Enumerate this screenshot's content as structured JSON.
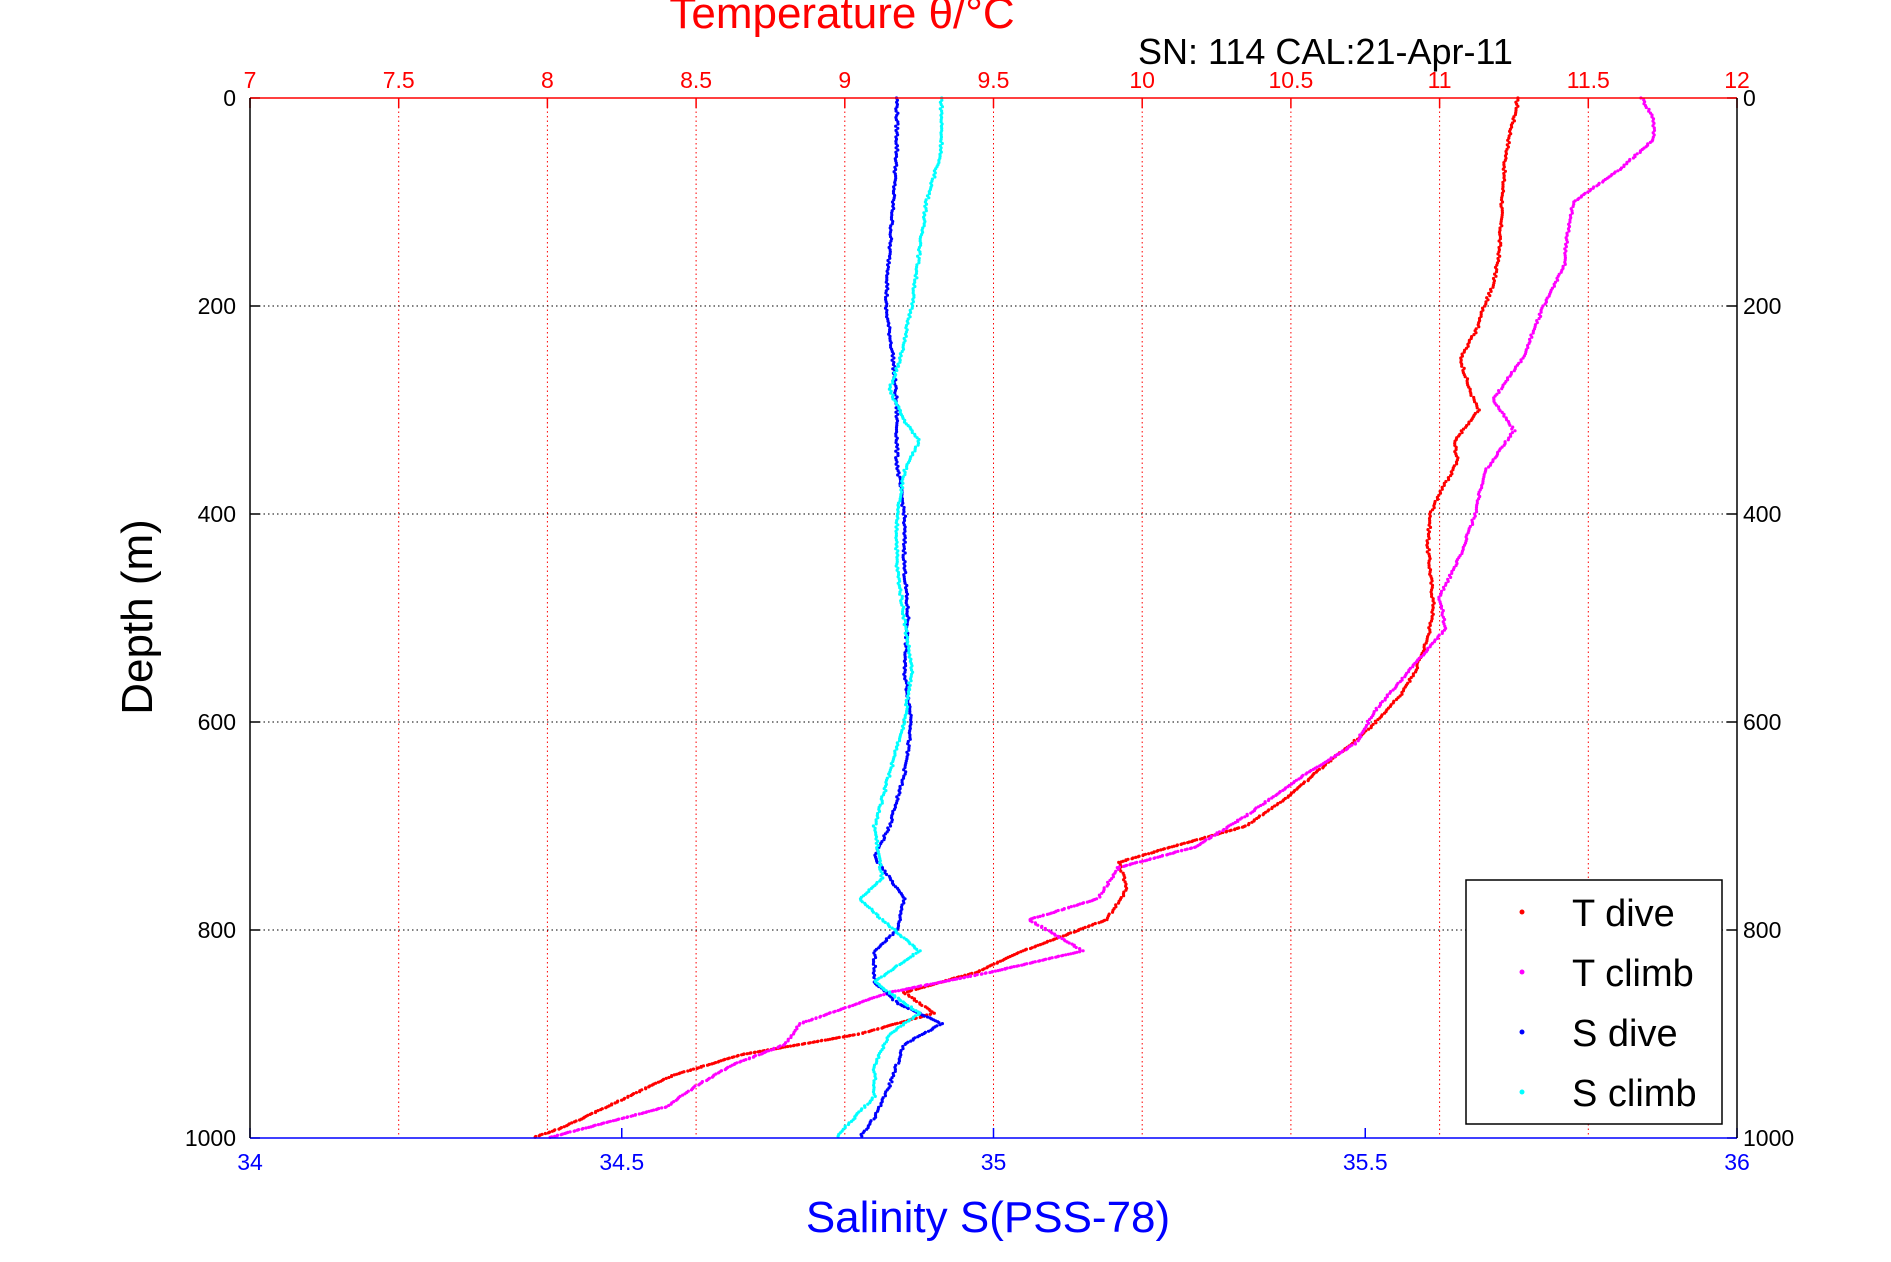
{
  "chart_data": {
    "type": "scatter",
    "title": "Temperature θ/°C",
    "subtitle": "SN: 114  CAL:21-Apr-11",
    "xlabel_top": "Temperature θ/°C",
    "xlabel_bottom": "Salinity S(PSS-78)",
    "ylabel": "Depth (m)",
    "temperature_axis": {
      "range": [
        7,
        12
      ],
      "ticks": [
        "7",
        "7.5",
        "8",
        "8.5",
        "9",
        "9.5",
        "10",
        "10.5",
        "11",
        "11.5",
        "12"
      ],
      "color": "#ff0000"
    },
    "salinity_axis": {
      "range": [
        34,
        36
      ],
      "ticks": [
        "34",
        "34.5",
        "35",
        "35.5",
        "36"
      ],
      "color": "#0000ff"
    },
    "depth_axis": {
      "range": [
        0,
        1000
      ],
      "ticks": [
        "0",
        "200",
        "400",
        "600",
        "800",
        "1000"
      ],
      "reversed": true
    },
    "grid": true,
    "legend_placement": "bottom-right",
    "series": [
      {
        "name": "T dive",
        "axis": "temperature",
        "color": "#ff0000",
        "points": [
          [
            11.26,
            0
          ],
          [
            11.26,
            10
          ],
          [
            11.24,
            30
          ],
          [
            11.22,
            60
          ],
          [
            11.21,
            100
          ],
          [
            11.2,
            150
          ],
          [
            11.18,
            180
          ],
          [
            11.15,
            200
          ],
          [
            11.13,
            220
          ],
          [
            11.07,
            250
          ],
          [
            11.1,
            280
          ],
          [
            11.13,
            300
          ],
          [
            11.05,
            330
          ],
          [
            11.06,
            350
          ],
          [
            11.0,
            380
          ],
          [
            10.97,
            400
          ],
          [
            10.96,
            430
          ],
          [
            10.97,
            460
          ],
          [
            10.98,
            490
          ],
          [
            10.96,
            520
          ],
          [
            10.92,
            550
          ],
          [
            10.88,
            570
          ],
          [
            10.82,
            590
          ],
          [
            10.75,
            610
          ],
          [
            10.62,
            640
          ],
          [
            10.5,
            670
          ],
          [
            10.35,
            700
          ],
          [
            10.1,
            720
          ],
          [
            9.92,
            735
          ],
          [
            9.95,
            760
          ],
          [
            9.88,
            790
          ],
          [
            9.6,
            820
          ],
          [
            9.45,
            840
          ],
          [
            9.2,
            860
          ],
          [
            9.3,
            880
          ],
          [
            9.05,
            900
          ],
          [
            8.65,
            920
          ],
          [
            8.42,
            940
          ],
          [
            8.2,
            970
          ],
          [
            8.05,
            990
          ],
          [
            7.95,
            1000
          ]
        ]
      },
      {
        "name": "T climb",
        "axis": "temperature",
        "color": "#ff00ff",
        "points": [
          [
            11.68,
            0
          ],
          [
            11.72,
            20
          ],
          [
            11.72,
            40
          ],
          [
            11.6,
            70
          ],
          [
            11.45,
            100
          ],
          [
            11.43,
            130
          ],
          [
            11.42,
            160
          ],
          [
            11.35,
            200
          ],
          [
            11.28,
            250
          ],
          [
            11.18,
            290
          ],
          [
            11.25,
            320
          ],
          [
            11.15,
            360
          ],
          [
            11.12,
            400
          ],
          [
            11.07,
            440
          ],
          [
            11.0,
            480
          ],
          [
            11.02,
            510
          ],
          [
            10.9,
            550
          ],
          [
            10.78,
            590
          ],
          [
            10.72,
            620
          ],
          [
            10.55,
            650
          ],
          [
            10.35,
            690
          ],
          [
            10.18,
            720
          ],
          [
            9.92,
            740
          ],
          [
            9.85,
            770
          ],
          [
            9.62,
            790
          ],
          [
            9.8,
            820
          ],
          [
            9.5,
            840
          ],
          [
            9.15,
            860
          ],
          [
            8.85,
            890
          ],
          [
            8.8,
            910
          ],
          [
            8.62,
            930
          ],
          [
            8.5,
            950
          ],
          [
            8.4,
            970
          ],
          [
            8.0,
            1000
          ]
        ]
      },
      {
        "name": "S dive",
        "axis": "salinity",
        "color": "#0000ff",
        "points": [
          [
            34.87,
            0
          ],
          [
            34.87,
            50
          ],
          [
            34.865,
            100
          ],
          [
            34.86,
            150
          ],
          [
            34.855,
            200
          ],
          [
            34.865,
            250
          ],
          [
            34.87,
            300
          ],
          [
            34.87,
            350
          ],
          [
            34.88,
            400
          ],
          [
            34.88,
            450
          ],
          [
            34.885,
            500
          ],
          [
            34.88,
            550
          ],
          [
            34.89,
            600
          ],
          [
            34.88,
            650
          ],
          [
            34.86,
            700
          ],
          [
            34.84,
            730
          ],
          [
            34.86,
            750
          ],
          [
            34.88,
            770
          ],
          [
            34.87,
            800
          ],
          [
            34.84,
            820
          ],
          [
            34.84,
            850
          ],
          [
            34.87,
            870
          ],
          [
            34.93,
            890
          ],
          [
            34.88,
            910
          ],
          [
            34.87,
            930
          ],
          [
            34.86,
            950
          ],
          [
            34.84,
            980
          ],
          [
            34.82,
            1000
          ]
        ]
      },
      {
        "name": "S climb",
        "axis": "salinity",
        "color": "#00ffff",
        "points": [
          [
            34.93,
            0
          ],
          [
            34.93,
            50
          ],
          [
            34.91,
            100
          ],
          [
            34.9,
            150
          ],
          [
            34.89,
            200
          ],
          [
            34.875,
            250
          ],
          [
            34.86,
            280
          ],
          [
            34.88,
            310
          ],
          [
            34.9,
            330
          ],
          [
            34.88,
            360
          ],
          [
            34.87,
            400
          ],
          [
            34.87,
            450
          ],
          [
            34.88,
            500
          ],
          [
            34.89,
            550
          ],
          [
            34.88,
            600
          ],
          [
            34.86,
            650
          ],
          [
            34.84,
            700
          ],
          [
            34.85,
            750
          ],
          [
            34.82,
            770
          ],
          [
            34.85,
            790
          ],
          [
            34.9,
            820
          ],
          [
            34.84,
            850
          ],
          [
            34.9,
            880
          ],
          [
            34.86,
            900
          ],
          [
            34.84,
            930
          ],
          [
            34.84,
            960
          ],
          [
            34.8,
            990
          ],
          [
            34.79,
            1000
          ]
        ]
      }
    ]
  }
}
